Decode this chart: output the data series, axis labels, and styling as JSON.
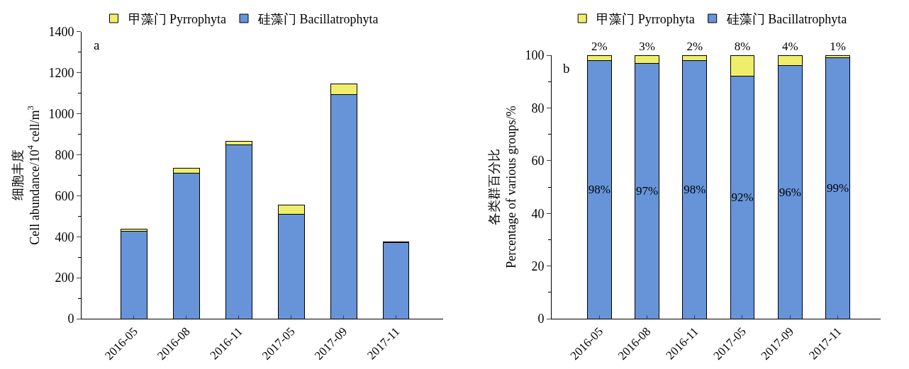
{
  "chart_data": [
    {
      "type": "bar",
      "stacked": true,
      "annotations": [
        "a"
      ],
      "ylabel": "细胞丰度\nCell abundance/10$^{4}$ cell/m$^{3}$",
      "categories": [
        "2016-05",
        "2016-08",
        "2016-11",
        "2017-05",
        "2017-09",
        "2017-11"
      ],
      "series": [
        {
          "name": "硅藻门 Bacillatrophyta",
          "color": "#6794d9",
          "values": [
            428,
            710,
            849,
            510,
            1094,
            371
          ]
        },
        {
          "name": "甲藻门 Pyrrophyta",
          "color": "#eeee6a",
          "values": [
            10,
            23,
            18,
            44,
            50,
            5
          ]
        }
      ],
      "ylim": [
        0,
        1400
      ],
      "yticks": [
        0,
        200,
        400,
        600,
        800,
        1000,
        1200,
        1400
      ],
      "grid": false,
      "legend": "top"
    },
    {
      "type": "bar",
      "stacked": true,
      "annotations": [
        "b"
      ],
      "ylabel": "各类群百分比\nPercentage of various groups/%",
      "categories": [
        "2016-05",
        "2016-08",
        "2016-11",
        "2017-05",
        "2017-09",
        "2017-11"
      ],
      "series": [
        {
          "name": "硅藻门 Bacillatrophyta",
          "color": "#6794d9",
          "values": [
            98,
            97,
            98,
            92,
            96,
            99
          ],
          "value_labels": [
            "98%",
            "97%",
            "98%",
            "92%",
            "96%",
            "99%"
          ]
        },
        {
          "name": "甲藻门 Pyrrophyta",
          "color": "#eeee6a",
          "values": [
            2,
            3,
            2,
            8,
            4,
            1
          ],
          "value_labels": [
            "2%",
            "3%",
            "2%",
            "8%",
            "4%",
            "1%"
          ]
        }
      ],
      "ylim": [
        0,
        100
      ],
      "yticks": [
        0,
        20,
        40,
        60,
        80,
        100
      ],
      "grid": false,
      "legend": "top"
    }
  ]
}
